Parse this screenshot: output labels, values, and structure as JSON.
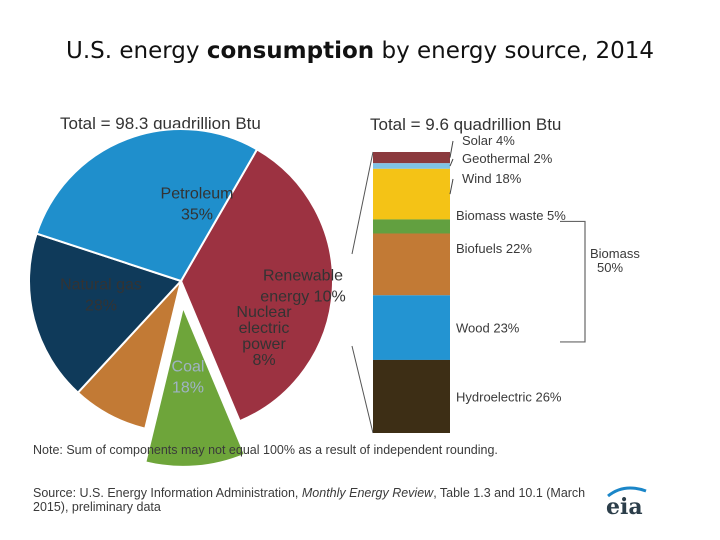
{
  "slide": {
    "title_pre": "U.S. energy ",
    "title_bold": "consumption",
    "title_post": " by energy source, 2014"
  },
  "chart_data": [
    {
      "type": "pie",
      "title": "Total = 98.3 quadrillion Btu",
      "slices": [
        {
          "label": "Petroleum",
          "pct_label": "35%",
          "value": 35,
          "color": "#9c3241"
        },
        {
          "label": "Renewable energy",
          "pct_label": "10%",
          "value": 10,
          "color": "#6ea53a",
          "exploded": true
        },
        {
          "label": "Nuclear electric power",
          "pct_label": "8%",
          "value": 8,
          "color": "#c27a35"
        },
        {
          "label": "Coal",
          "pct_label": "18%",
          "value": 18,
          "color": "#0f3a5a"
        },
        {
          "label": "Natural gas",
          "pct_label": "28%",
          "value": 28,
          "color": "#1f8fcc"
        }
      ]
    },
    {
      "type": "bar",
      "stacked": true,
      "title": "Total = 9.6 quadrillion Btu",
      "segments": [
        {
          "label": "Solar 4%",
          "value": 4,
          "color": "#8b3a3e"
        },
        {
          "label": "Geothermal 2%",
          "value": 2,
          "color": "#7fc3e6"
        },
        {
          "label": "Wind 18%",
          "value": 18,
          "color": "#f4c316"
        },
        {
          "label": "Biomass waste 5%",
          "value": 5,
          "color": "#62a040"
        },
        {
          "label": "Biofuels 22%",
          "value": 22,
          "color": "#c27a35"
        },
        {
          "label": "Wood 23%",
          "value": 23,
          "color": "#2394d2"
        },
        {
          "label": "Hydroelectric 26%",
          "value": 26,
          "color": "#3d2e15"
        }
      ],
      "bracket": {
        "label": "Biomass",
        "pct_label": "50%"
      }
    }
  ],
  "notes": {
    "note": "Note: Sum of components may not equal 100% as a result  of independent rounding.",
    "source_pre": "Source: U.S. Energy Information Administration, ",
    "source_italic": "Monthly Energy Review",
    "source_post": ", Table 1.3 and 10.1 (March 2015), preliminary data"
  },
  "logo": {
    "text": "eia"
  }
}
